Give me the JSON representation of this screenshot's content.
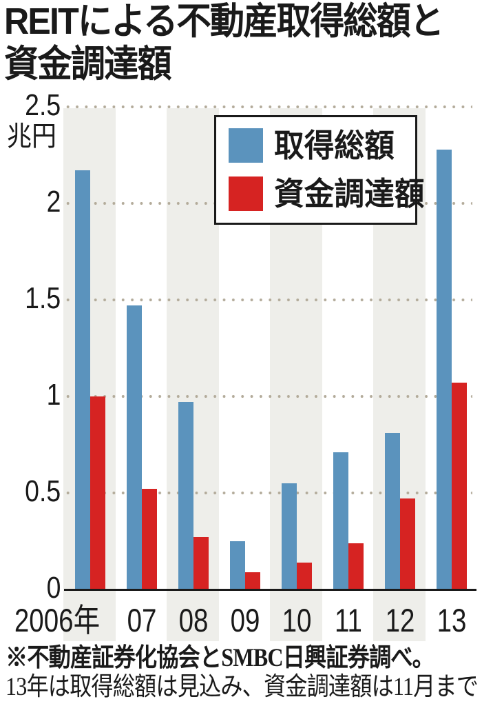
{
  "title": {
    "line1": "REITによる不動産取得総額と",
    "line2": "資金調達額"
  },
  "colors": {
    "acquisition": "#5b93bd",
    "funding": "#d62322",
    "column_shade": "#eeeeea",
    "gridline_dots": "#b3ab9a",
    "text": "#1a1a1a"
  },
  "yaxis": {
    "unit": "兆円",
    "ticks": [
      "0",
      "0.5",
      "1",
      "1.5",
      "2",
      "2.5"
    ]
  },
  "xaxis": {
    "labels": [
      "2006年",
      "07",
      "08",
      "09",
      "10",
      "11",
      "12",
      "13"
    ]
  },
  "legend": {
    "items": [
      {
        "label": "取得総額",
        "color": "#5b93bd"
      },
      {
        "label": "資金調達額",
        "color": "#d62322"
      }
    ]
  },
  "footnote": {
    "line1": "※不動産証券化協会とSMBC日興証券調べ。",
    "line2": "13年は取得総額は見込み、資金調達額は11月まで"
  },
  "chart_data": {
    "type": "bar",
    "title": "REITによる不動産取得総額と資金調達額",
    "xlabel": "",
    "ylabel": "兆円",
    "ylim": [
      0,
      2.5
    ],
    "yticks": [
      0,
      0.5,
      1,
      1.5,
      2,
      2.5
    ],
    "grid": "horizontal dotted",
    "legend_position": "upper center (inside plot, boxed)",
    "categories": [
      "2006年",
      "07",
      "08",
      "09",
      "10",
      "11",
      "12",
      "13"
    ],
    "series": [
      {
        "name": "取得総額",
        "color": "#5b93bd",
        "values": [
          2.17,
          1.47,
          0.97,
          0.25,
          0.55,
          0.71,
          0.81,
          2.28
        ]
      },
      {
        "name": "資金調達額",
        "color": "#d62322",
        "values": [
          1.0,
          0.52,
          0.27,
          0.09,
          0.14,
          0.24,
          0.47,
          1.07
        ]
      }
    ],
    "annotations": [
      "※不動産証券化協会とSMBC日興証券調べ。",
      "13年は取得総額は見込み、資金調達額は11月まで"
    ]
  }
}
